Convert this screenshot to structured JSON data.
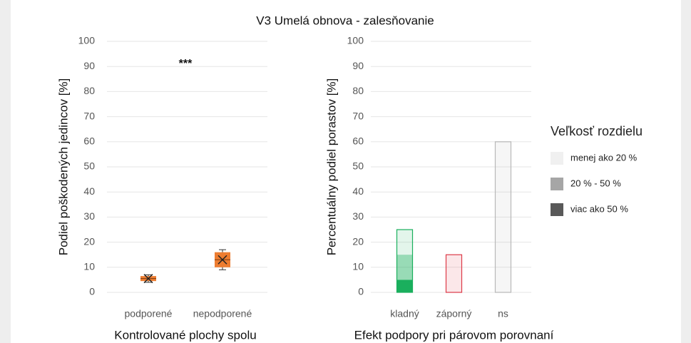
{
  "chart_data": [
    {
      "type": "box",
      "title": "V3 Umelá obnova - zalesňovanie",
      "ylabel": "Podiel poškodených jedincov [%]",
      "xlabel": "Kontrolované plochy spolu",
      "categories": [
        "podporené",
        "nepodporené"
      ],
      "min": [
        4,
        9
      ],
      "q1": [
        4.5,
        10
      ],
      "median": [
        5.5,
        13
      ],
      "q3": [
        6.5,
        16
      ],
      "max": [
        7,
        17
      ],
      "mean": [
        5.5,
        13
      ],
      "color": "#ed7d31",
      "annotation": "***",
      "ylim": [
        0,
        100
      ],
      "yticks": [
        0,
        10,
        20,
        30,
        40,
        50,
        60,
        70,
        80,
        90,
        100
      ],
      "grid": true
    },
    {
      "type": "bar",
      "stacked": true,
      "ylabel": "Percentuálny podiel porastov [%]",
      "xlabel": "Efekt podpory pri párovom porovnaní",
      "categories": [
        "kladný",
        "záporný",
        "ns"
      ],
      "category_colors": [
        "#1aaf5d",
        "#dd3a48",
        "#b8b8b8"
      ],
      "legend_title": "Veľkosť rozdielu",
      "legend": "right",
      "series": [
        {
          "name": "viac ako 50 %",
          "color": "#595959",
          "opacity": 1,
          "values": [
            5,
            0,
            0
          ]
        },
        {
          "name": "20 % - 50 %",
          "color": "#a6a6a6",
          "opacity": 0.45,
          "values": [
            10,
            0,
            0
          ]
        },
        {
          "name": "menej ako 20 %",
          "color": "#f0f0f0",
          "opacity": 0.12,
          "values": [
            10,
            15,
            60
          ]
        }
      ],
      "ylim": [
        0,
        100
      ],
      "yticks": [
        0,
        10,
        20,
        30,
        40,
        50,
        60,
        70,
        80,
        90,
        100
      ],
      "grid": true
    }
  ]
}
